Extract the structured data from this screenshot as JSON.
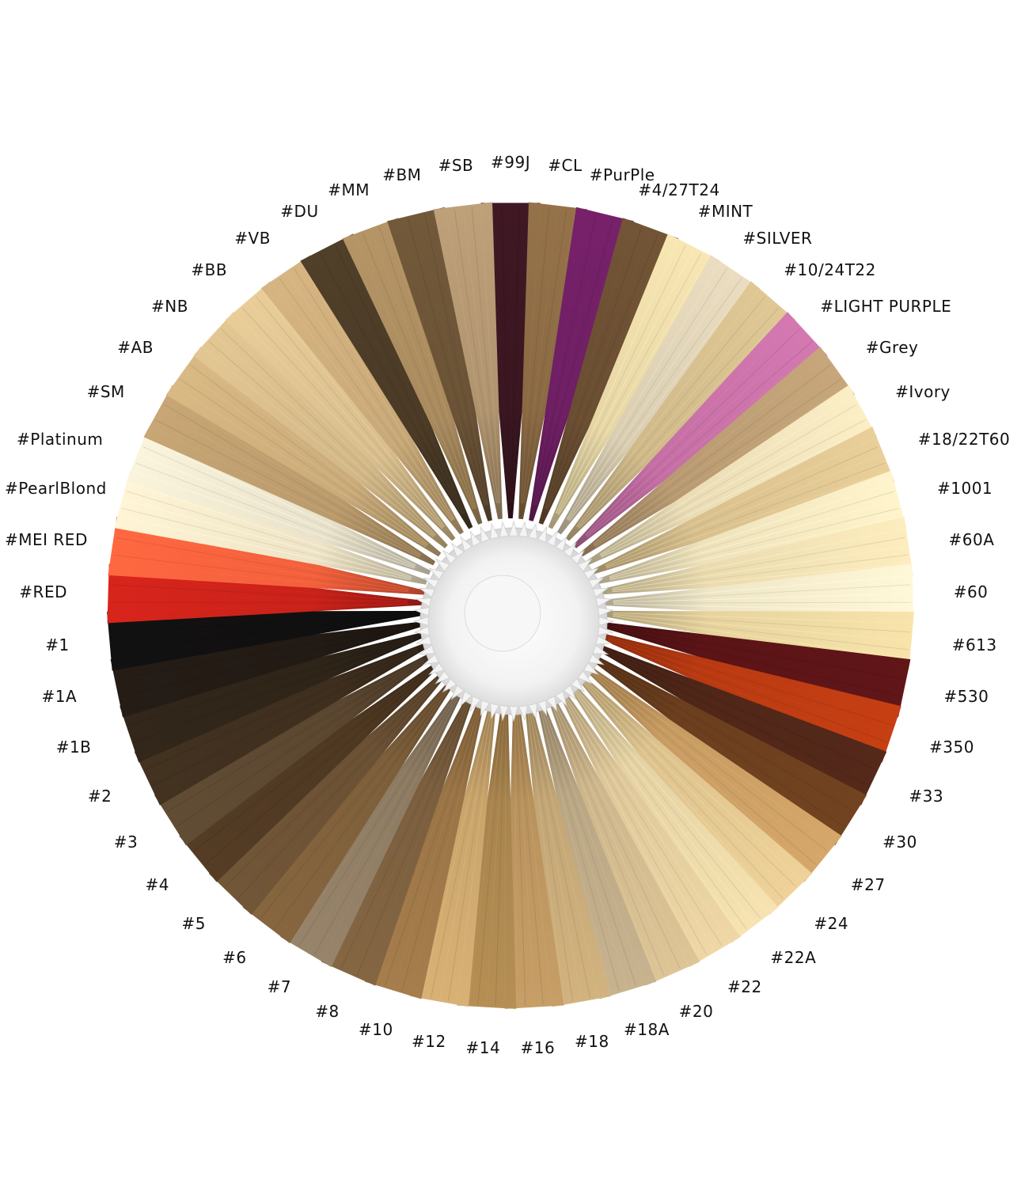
{
  "swatches": [
    {
      "label": "#99J",
      "color": "#3a1620"
    },
    {
      "label": "#CL",
      "color": "#8a6a44"
    },
    {
      "label": "#PurPle",
      "color": "#6e1f62"
    },
    {
      "label": "#4/27T24",
      "color": "#6a4e32"
    },
    {
      "label": "#MINT",
      "color": "#e6d6a6"
    },
    {
      "label": "#SILVER",
      "color": "#d9cdb2"
    },
    {
      "label": "#10/24T22",
      "color": "#cfb98a"
    },
    {
      "label": "#LIGHT PURPLE",
      "color": "#c46fa4"
    },
    {
      "label": "#Grey",
      "color": "#b89a72"
    },
    {
      "label": "#Ivory",
      "color": "#e9dcb6"
    },
    {
      "label": "#18/22T60",
      "color": "#d8c08e"
    },
    {
      "label": "#1001",
      "color": "#eee2bc"
    },
    {
      "label": "#60A",
      "color": "#eadbb0"
    },
    {
      "label": "#60",
      "color": "#efe6c8"
    },
    {
      "label": "#613",
      "color": "#e6d39e"
    },
    {
      "label": "#530",
      "color": "#5a1416"
    },
    {
      "label": "#350",
      "color": "#b83a12"
    },
    {
      "label": "#33",
      "color": "#4e2618"
    },
    {
      "label": "#30",
      "color": "#6a3e1e"
    },
    {
      "label": "#27",
      "color": "#c69b62"
    },
    {
      "label": "#24",
      "color": "#dcc28e"
    },
    {
      "label": "#22A",
      "color": "#e4d2a4"
    },
    {
      "label": "#22",
      "color": "#ddc79a"
    },
    {
      "label": "#20",
      "color": "#cdb68c"
    },
    {
      "label": "#18A",
      "color": "#b9a684"
    },
    {
      "label": "#18",
      "color": "#c2a676"
    },
    {
      "label": "#16",
      "color": "#b8925e"
    },
    {
      "label": "#14",
      "color": "#a8844e"
    },
    {
      "label": "#12",
      "color": "#c8a46c"
    },
    {
      "label": "#10",
      "color": "#9a7446"
    },
    {
      "label": "#8",
      "color": "#7a5e3e"
    },
    {
      "label": "#7",
      "color": "#8c7a62"
    },
    {
      "label": "#6",
      "color": "#7c5e3a"
    },
    {
      "label": "#5",
      "color": "#6a5034"
    },
    {
      "label": "#4",
      "color": "#4e3822"
    },
    {
      "label": "#3",
      "color": "#5a4630"
    },
    {
      "label": "#2",
      "color": "#3e2e1e"
    },
    {
      "label": "#1B",
      "color": "#2e2418"
    },
    {
      "label": "#1A",
      "color": "#221a14"
    },
    {
      "label": "#1",
      "color": "#111010"
    },
    {
      "label": "#RED",
      "color": "#c8221a"
    },
    {
      "label": "#MEI RED",
      "color": "#f2603c"
    },
    {
      "label": "#PearlBlond",
      "color": "#eee3c6"
    },
    {
      "label": "#Platinum",
      "color": "#e8e2cc"
    },
    {
      "label": "#SM",
      "color": "#b99a6c"
    },
    {
      "label": "#AB",
      "color": "#c9ab7a"
    },
    {
      "label": "#NB",
      "color": "#d2b888"
    },
    {
      "label": "#BB",
      "color": "#d8be8e"
    },
    {
      "label": "#VB",
      "color": "#c7a878"
    },
    {
      "label": "#DU",
      "color": "#4a3a26"
    },
    {
      "label": "#MM",
      "color": "#a88a5e"
    },
    {
      "label": "#BM",
      "color": "#6a5236"
    },
    {
      "label": "#SB",
      "color": "#b09470"
    }
  ]
}
